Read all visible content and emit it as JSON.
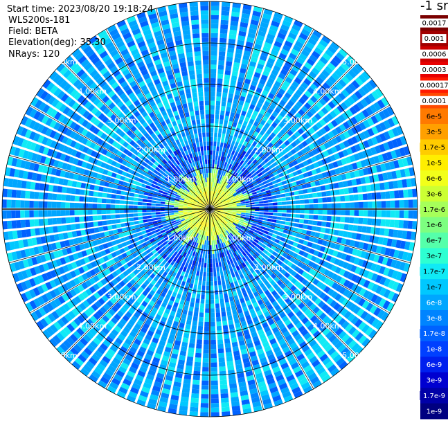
{
  "header": {
    "start_time": "Start time: 2023/08/20 19:18:24",
    "instrument": "WLS200s-181",
    "field": "Field: BETA",
    "elevation": "Elevation(deg): 35.30",
    "nrays": "NRays: 120"
  },
  "colorbar": {
    "unit": "-1 sr",
    "levels": [
      {
        "label": "0.0017",
        "color": "#7a0000",
        "label_bg": "#ffffff",
        "label_color": "#000000"
      },
      {
        "label": "0.001",
        "color": "#a10000",
        "label_bg": "#ffffff",
        "label_color": "#000000"
      },
      {
        "label": "0.0006",
        "color": "#cc0000",
        "label_bg": "#ffffff",
        "label_color": "#000000"
      },
      {
        "label": "0.0003",
        "color": "#e80000",
        "label_bg": "#ffffff",
        "label_color": "#000000"
      },
      {
        "label": "0.00017",
        "color": "#ff1a00",
        "label_bg": "#ffffff",
        "label_color": "#000000"
      },
      {
        "label": "0.0001",
        "color": "#ff4a00",
        "label_bg": "#ffffff",
        "label_color": "#000000"
      },
      {
        "label": "6e-5",
        "color": "#ff7a00",
        "label_bg": "#ff7a00",
        "label_color": "#000000"
      },
      {
        "label": "3e-5",
        "color": "#ffa000",
        "label_bg": "#ffa000",
        "label_color": "#000000"
      },
      {
        "label": "1.7e-5",
        "color": "#ffcc00",
        "label_bg": "#ffcc00",
        "label_color": "#000000"
      },
      {
        "label": "1e-5",
        "color": "#ffee00",
        "label_bg": "#ffee00",
        "label_color": "#000000"
      },
      {
        "label": "6e-6",
        "color": "#f2ff1a",
        "label_bg": "#f2ff1a",
        "label_color": "#000000"
      },
      {
        "label": "3e-6",
        "color": "#ccff33",
        "label_bg": "#ccff33",
        "label_color": "#000000"
      },
      {
        "label": "1.7e-6",
        "color": "#a6ff5a",
        "label_bg": "#a6ff5a",
        "label_color": "#000000"
      },
      {
        "label": "1e-6",
        "color": "#7dff80",
        "label_bg": "#7dff80",
        "label_color": "#000000"
      },
      {
        "label": "6e-7",
        "color": "#55ffaa",
        "label_bg": "#55ffaa",
        "label_color": "#000000"
      },
      {
        "label": "3e-7",
        "color": "#2dffd2",
        "label_bg": "#2dffd2",
        "label_color": "#000000"
      },
      {
        "label": "1.7e-7",
        "color": "#10eaf5",
        "label_bg": "#10eaf5",
        "label_color": "#000000"
      },
      {
        "label": "1e-7",
        "color": "#00c8ff",
        "label_bg": "#00c8ff",
        "label_color": "#000000"
      },
      {
        "label": "6e-8",
        "color": "#00a6ff",
        "label_bg": "#00a6ff",
        "label_color": "#ffffff"
      },
      {
        "label": "3e-8",
        "color": "#0084ff",
        "label_bg": "#0084ff",
        "label_color": "#ffffff"
      },
      {
        "label": "1.7e-8",
        "color": "#0062ff",
        "label_bg": "#0062ff",
        "label_color": "#ffffff"
      },
      {
        "label": "1e-8",
        "color": "#0040ff",
        "label_bg": "#0040ff",
        "label_color": "#ffffff"
      },
      {
        "label": "6e-9",
        "color": "#0020ee",
        "label_bg": "#0020ee",
        "label_color": "#ffffff"
      },
      {
        "label": "3e-9",
        "color": "#0000d0",
        "label_bg": "#0000d0",
        "label_color": "#ffffff"
      },
      {
        "label": "1.7e-9",
        "color": "#0000a8",
        "label_bg": "#0000a8",
        "label_color": "#ffffff"
      },
      {
        "label": "1e-9",
        "color": "#000080",
        "label_bg": "#000080",
        "label_color": "#ffffff"
      }
    ]
  },
  "chart_data": {
    "type": "heatmap",
    "projection": "polar (PPI scan)",
    "variable": "BETA",
    "n_rays": 120,
    "range_max_km": 5.0,
    "range_ring_labels": [
      "1.00km",
      "2.00km",
      "3.00km",
      "4.00km",
      "5.00km"
    ],
    "range_rings_km": [
      1,
      2,
      3,
      4,
      5
    ],
    "azimuth_spokes_deg": [
      0,
      15,
      30,
      45,
      60,
      75,
      90,
      105,
      120,
      135,
      150,
      165,
      180,
      195,
      210,
      225,
      240,
      255,
      270,
      285,
      300,
      315,
      330,
      345
    ],
    "dominant_background_class": "1e-7 to 3e-8",
    "near_field_max_class": "1.7e-5",
    "near_field_extent_km": 0.8
  }
}
